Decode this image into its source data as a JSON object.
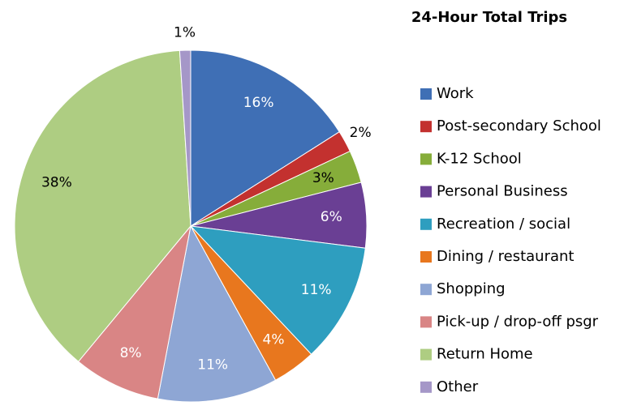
{
  "chart_data": {
    "type": "pie",
    "title": "24-Hour Total Trips",
    "categories": [
      "Work",
      "Post-secondary School",
      "K-12 School",
      "Personal Business",
      "Recreation / social",
      "Dining / restaurant",
      "Shopping",
      "Pick-up / drop-off psgr",
      "Return Home",
      "Other"
    ],
    "values": [
      16,
      2,
      3,
      6,
      11,
      4,
      11,
      8,
      38,
      1
    ],
    "value_labels": [
      "16%",
      "2%",
      "3%",
      "6%",
      "11%",
      "4%",
      "11%",
      "8%",
      "38%",
      "1%"
    ],
    "colors": [
      "#3f6fb5",
      "#c3312f",
      "#86ad3a",
      "#6a3f94",
      "#2e9ebf",
      "#e8771e",
      "#8ea6d4",
      "#d98585",
      "#aecd82",
      "#a597c8"
    ],
    "label_colors": [
      "#ffffff",
      "#000000",
      "#000000",
      "#ffffff",
      "#ffffff",
      "#ffffff",
      "#ffffff",
      "#ffffff",
      "#000000",
      "#000000"
    ],
    "legend": "right"
  }
}
